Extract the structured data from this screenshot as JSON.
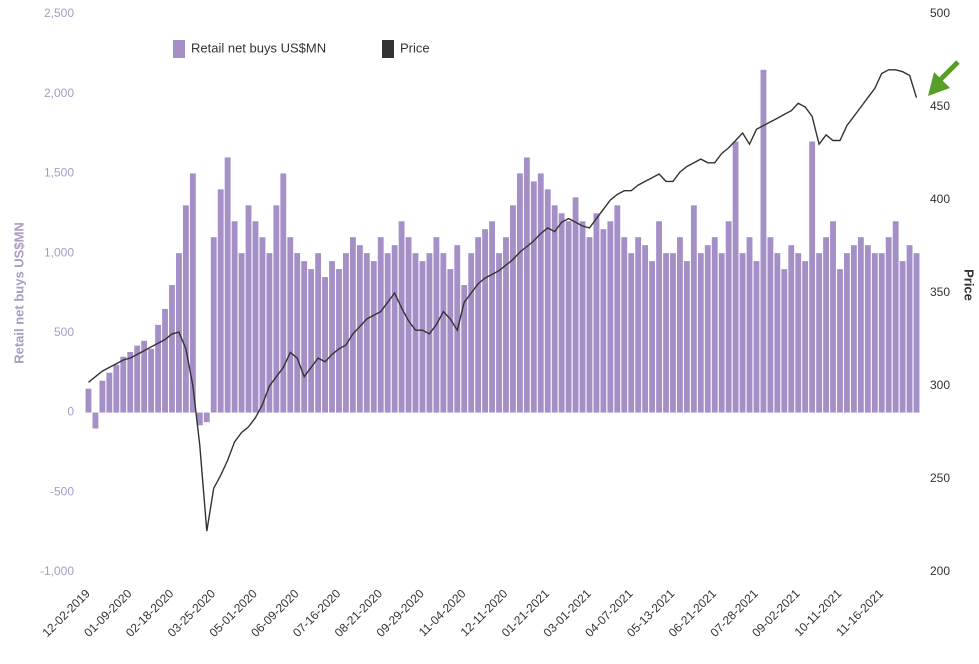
{
  "chart_data": {
    "type": "bar",
    "ylabel": "Retail net buys US$MN",
    "y2label": "Price",
    "categories": [
      "12-02-2019",
      null,
      null,
      null,
      null,
      null,
      "01-09-2020",
      null,
      null,
      null,
      null,
      null,
      "02-18-2020",
      null,
      null,
      null,
      null,
      null,
      "03-25-2020",
      null,
      null,
      null,
      null,
      null,
      "05-01-2020",
      null,
      null,
      null,
      null,
      null,
      "06-09-2020",
      null,
      null,
      null,
      null,
      null,
      "07-16-2020",
      null,
      null,
      null,
      null,
      null,
      "08-21-2020",
      null,
      null,
      null,
      null,
      null,
      "09-29-2020",
      null,
      null,
      null,
      null,
      null,
      "11-04-2020",
      null,
      null,
      null,
      null,
      null,
      "12-11-2020",
      null,
      null,
      null,
      null,
      null,
      "01-21-2021",
      null,
      null,
      null,
      null,
      null,
      "03-01-2021",
      null,
      null,
      null,
      null,
      null,
      "04-07-2021",
      null,
      null,
      null,
      null,
      null,
      "05-13-2021",
      null,
      null,
      null,
      null,
      null,
      "06-21-2021",
      null,
      null,
      null,
      null,
      null,
      "07-28-2021",
      null,
      null,
      null,
      null,
      null,
      "09-02-2021",
      null,
      null,
      null,
      null,
      null,
      "10-11-2021",
      null,
      null,
      null,
      null,
      null,
      "11-16-2021",
      null,
      null,
      null,
      null,
      null
    ],
    "series": [
      {
        "name": "Retail net buys US$MN",
        "color": "#a58fc7",
        "type": "bar",
        "values": [
          150,
          -100,
          200,
          250,
          300,
          350,
          380,
          420,
          450,
          400,
          550,
          650,
          800,
          1000,
          1300,
          1500,
          -80,
          -60,
          1100,
          1400,
          1600,
          1200,
          1000,
          1300,
          1200,
          1100,
          1000,
          1300,
          1500,
          1100,
          1000,
          950,
          900,
          1000,
          850,
          950,
          900,
          1000,
          1100,
          1050,
          1000,
          950,
          1100,
          1000,
          1050,
          1200,
          1100,
          1000,
          950,
          1000,
          1100,
          1000,
          900,
          1050,
          800,
          1000,
          1100,
          1150,
          1200,
          1000,
          1100,
          1300,
          1500,
          1600,
          1450,
          1500,
          1400,
          1300,
          1250,
          1200,
          1350,
          1200,
          1100,
          1250,
          1150,
          1200,
          1300,
          1100,
          1000,
          1100,
          1050,
          950,
          1200,
          1000,
          1000,
          1100,
          950,
          1300,
          1000,
          1050,
          1100,
          1000,
          1200,
          1700,
          1000,
          1100,
          950,
          2150,
          1100,
          1000,
          900,
          1050,
          1000,
          950,
          1700,
          1000,
          1100,
          1200,
          900,
          1000,
          1050,
          1100,
          1050,
          1000,
          1000,
          1100,
          1200,
          950,
          1050,
          1000
        ]
      },
      {
        "name": "Price",
        "color": "#333333",
        "type": "line",
        "axis": "y2",
        "values": [
          302,
          305,
          308,
          310,
          312,
          314,
          315,
          317,
          319,
          321,
          323,
          325,
          328,
          329,
          320,
          300,
          268,
          222,
          245,
          252,
          260,
          270,
          275,
          278,
          283,
          290,
          300,
          305,
          310,
          318,
          315,
          305,
          310,
          315,
          313,
          317,
          320,
          322,
          328,
          332,
          336,
          338,
          340,
          345,
          350,
          342,
          335,
          330,
          330,
          328,
          333,
          340,
          336,
          330,
          345,
          350,
          355,
          358,
          360,
          362,
          365,
          368,
          372,
          375,
          378,
          382,
          385,
          383,
          388,
          390,
          388,
          386,
          385,
          390,
          395,
          400,
          403,
          405,
          405,
          408,
          410,
          412,
          414,
          410,
          410,
          415,
          418,
          420,
          422,
          420,
          420,
          425,
          428,
          432,
          436,
          430,
          438,
          440,
          442,
          444,
          446,
          448,
          452,
          450,
          445,
          430,
          435,
          432,
          432,
          440,
          445,
          450,
          455,
          460,
          468,
          470,
          470,
          469,
          467,
          455
        ]
      }
    ],
    "ylim": [
      -1000,
      2500
    ],
    "yticks": [
      {
        "value": -1000,
        "label": "-1,000"
      },
      -500,
      0,
      500,
      {
        "value": 1000,
        "label": "1,000"
      },
      {
        "value": 1500,
        "label": "1,500"
      },
      {
        "value": 2000,
        "label": "2,000"
      },
      {
        "value": 2500,
        "label": "2,500"
      }
    ],
    "y2lim": [
      200,
      500
    ],
    "y2ticks": [
      200,
      250,
      300,
      350,
      400,
      450,
      500
    ],
    "grid": false
  }
}
